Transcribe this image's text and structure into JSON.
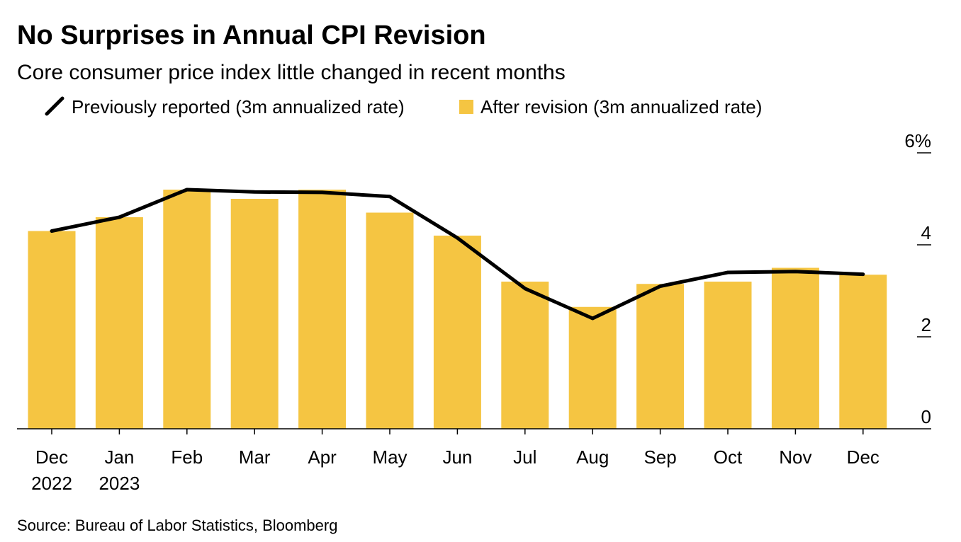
{
  "chart_data": {
    "type": "bar",
    "title": "No Surprises in Annual CPI Revision",
    "subtitle": "Core consumer price index little changed in recent months",
    "source": "Source: Bureau of Labor Statistics, Bloomberg",
    "categories": [
      [
        "Dec",
        "2022"
      ],
      [
        "Jan",
        "2023"
      ],
      [
        "Feb",
        ""
      ],
      [
        "Mar",
        ""
      ],
      [
        "Apr",
        ""
      ],
      [
        "May",
        ""
      ],
      [
        "Jun",
        ""
      ],
      [
        "Jul",
        ""
      ],
      [
        "Aug",
        ""
      ],
      [
        "Sep",
        ""
      ],
      [
        "Oct",
        ""
      ],
      [
        "Nov",
        ""
      ],
      [
        "Dec",
        ""
      ]
    ],
    "series": [
      {
        "name": "After revision (3m annualized rate)",
        "type": "bar",
        "color": "#F5C542",
        "values": [
          4.3,
          4.6,
          5.2,
          5.0,
          5.2,
          4.7,
          4.2,
          3.2,
          2.65,
          3.15,
          3.2,
          3.5,
          3.35
        ]
      },
      {
        "name": "Previously reported (3m annualized rate)",
        "type": "line",
        "color": "#000000",
        "values": [
          4.3,
          4.6,
          5.2,
          5.15,
          5.14,
          5.05,
          4.15,
          3.05,
          2.4,
          3.1,
          3.4,
          3.42,
          3.36
        ]
      }
    ],
    "y_ticks": [
      {
        "value": 0,
        "label": "0"
      },
      {
        "value": 2,
        "label": "2"
      },
      {
        "value": 4,
        "label": "4"
      },
      {
        "value": 6,
        "label": "6%"
      }
    ],
    "ylim": [
      0,
      6
    ],
    "axis_position": "right",
    "legend_position": "top-left",
    "grid": false
  }
}
